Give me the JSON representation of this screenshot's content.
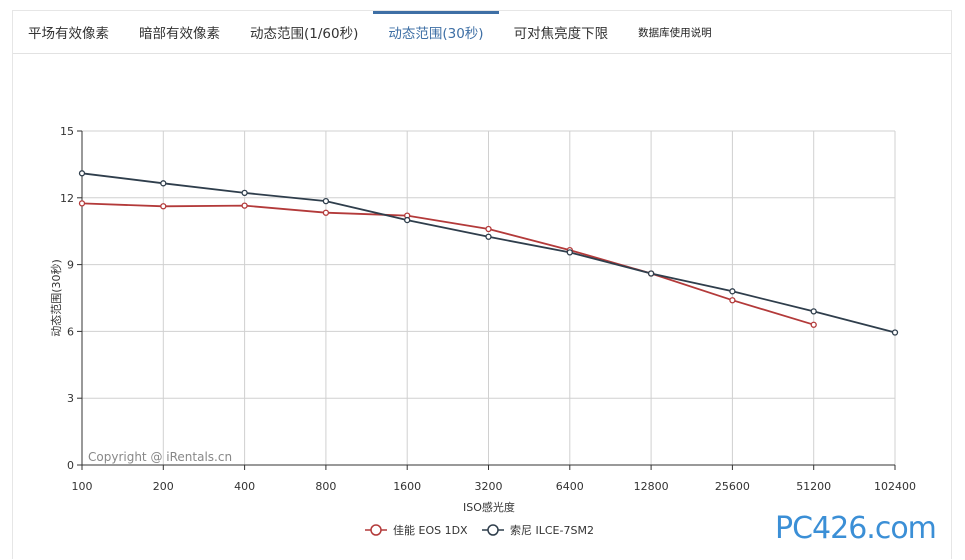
{
  "tabs": [
    {
      "label": "平场有效像素",
      "active": false,
      "small": false
    },
    {
      "label": "暗部有效像素",
      "active": false,
      "small": false
    },
    {
      "label": "动态范围(1/60秒)",
      "active": false,
      "small": false
    },
    {
      "label": "动态范围(30秒)",
      "active": true,
      "small": false
    },
    {
      "label": "可对焦亮度下限",
      "active": false,
      "small": false
    },
    {
      "label": "数据库使用说明",
      "active": false,
      "small": true
    }
  ],
  "watermark": "Copyright @ iRentals.cn",
  "site_logo": "PC426.com",
  "colors": {
    "canon": "#b33a3a",
    "sony": "#2f3e4c",
    "grid": "#cccccc",
    "axis": "#333333",
    "active_tab": "#3e6fa5"
  },
  "chart_data": {
    "type": "line",
    "xlabel": "ISO感光度",
    "ylabel": "动态范围(30秒)",
    "categories": [
      "100",
      "200",
      "400",
      "800",
      "1600",
      "3200",
      "6400",
      "12800",
      "25600",
      "51200",
      "102400"
    ],
    "ylim": [
      0,
      15
    ],
    "yticks": [
      "0",
      "3",
      "6",
      "9",
      "12",
      "15"
    ],
    "grid": true,
    "legend_position": "bottom-center",
    "series": [
      {
        "name": "佳能 EOS 1DX",
        "color": "#b33a3a",
        "values": [
          11.75,
          11.62,
          11.65,
          11.33,
          11.2,
          10.6,
          9.65,
          8.6,
          7.4,
          6.3,
          null
        ]
      },
      {
        "name": "索尼 ILCE-7SM2",
        "color": "#2f3e4c",
        "values": [
          13.1,
          12.65,
          12.22,
          11.85,
          11.0,
          10.25,
          9.55,
          8.6,
          7.8,
          6.9,
          5.95
        ]
      }
    ]
  }
}
